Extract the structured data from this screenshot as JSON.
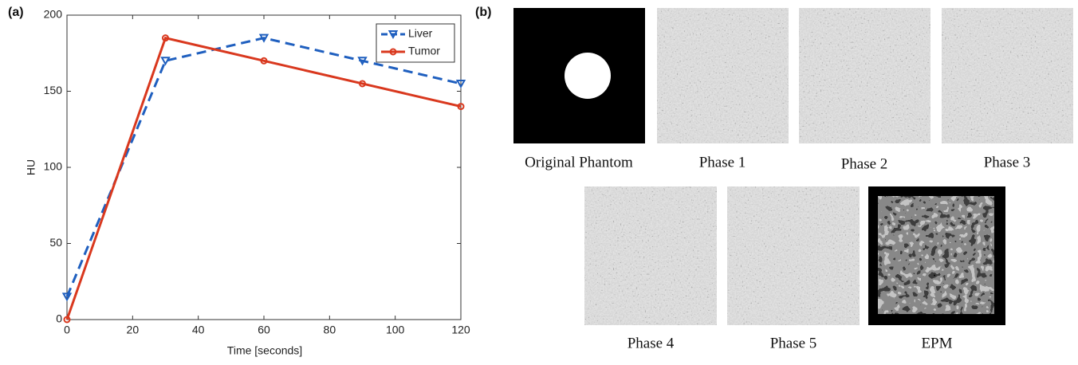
{
  "panel_labels": [
    "(a)",
    "(b)"
  ],
  "chart_data": {
    "type": "line",
    "x_label": "Time [seconds]",
    "y_label": "HU",
    "x": [
      0,
      30,
      60,
      90,
      120
    ],
    "series": [
      {
        "name": "Liver",
        "color": "#1f5fbf",
        "dashed": true,
        "marker": "triangle-down",
        "values": [
          15,
          170,
          185,
          170,
          155
        ]
      },
      {
        "name": "Tumor",
        "color": "#d9381e",
        "dashed": false,
        "marker": "circle",
        "values": [
          0,
          185,
          170,
          155,
          140
        ]
      }
    ],
    "xlim": [
      0,
      120
    ],
    "xticks": [
      0,
      20,
      40,
      60,
      80,
      100,
      120
    ],
    "ylim": [
      0,
      200
    ],
    "yticks": [
      0,
      50,
      100,
      150,
      200
    ],
    "grid": false,
    "legend": "upper right"
  },
  "images": {
    "captions": [
      "Original Phantom",
      "Phase 1",
      "Phase 2",
      "Phase 3",
      "Phase 4",
      "Phase 5",
      "EPM"
    ]
  }
}
